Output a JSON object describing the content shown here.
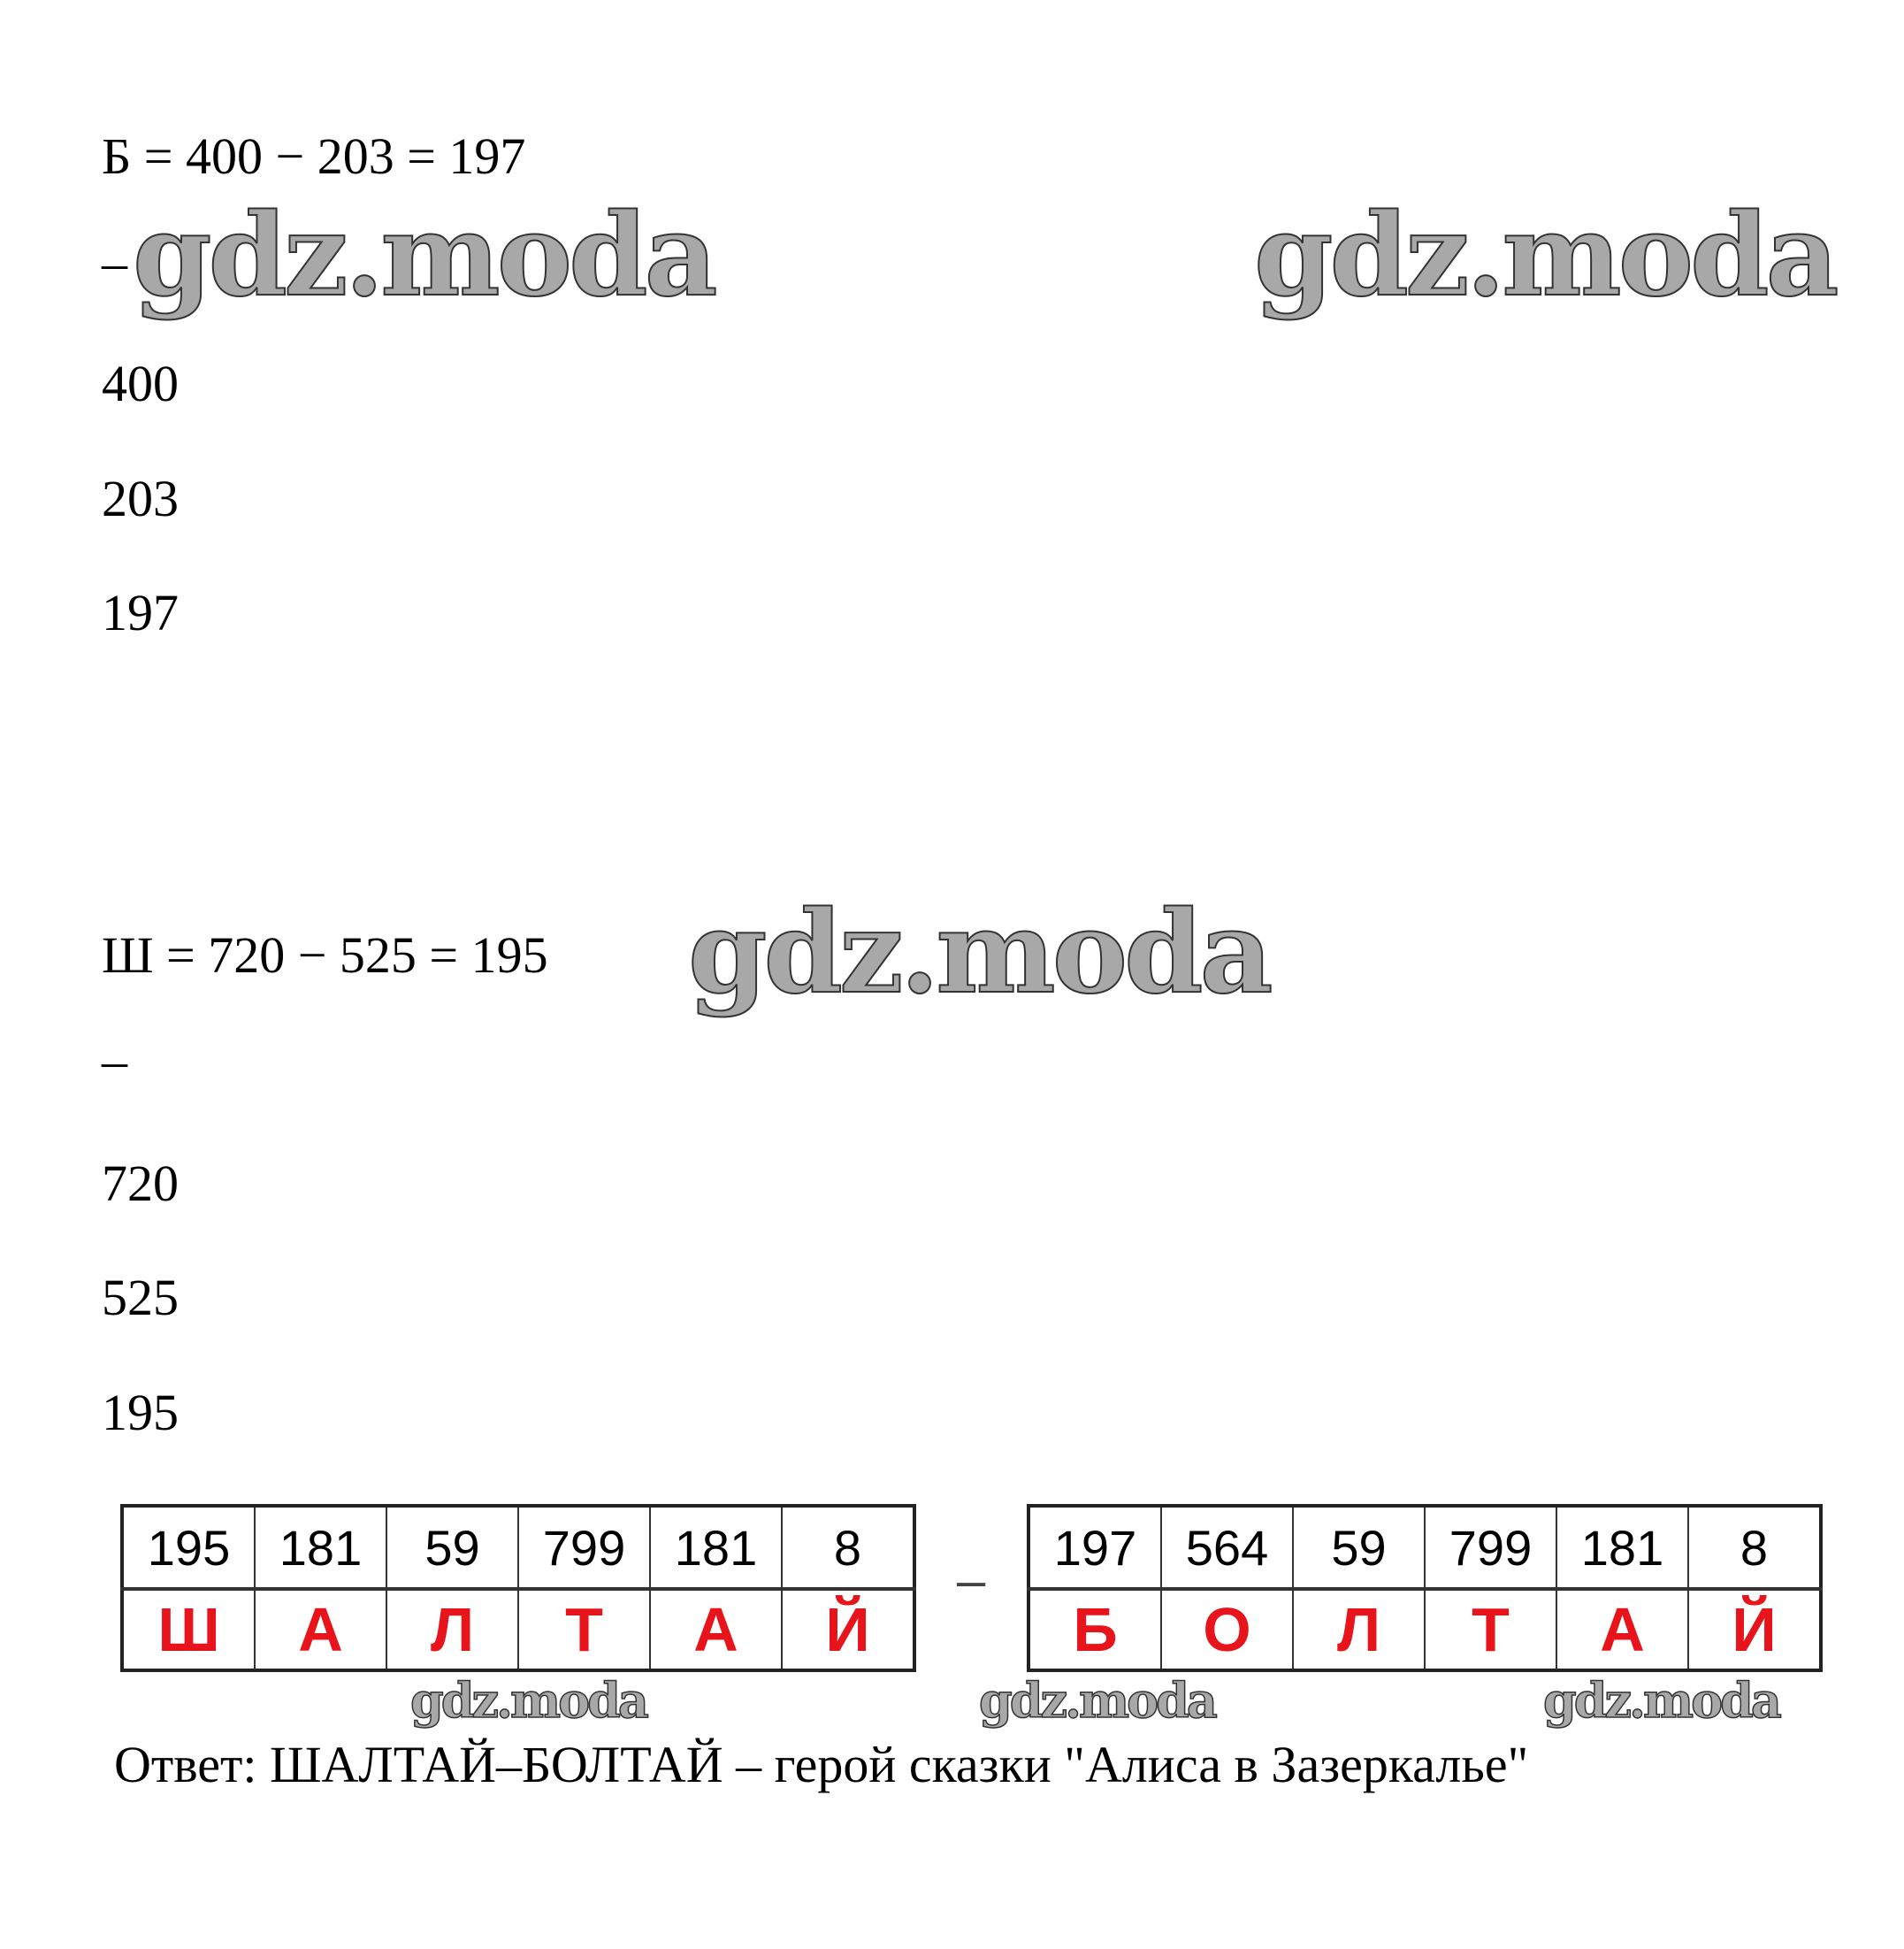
{
  "problem1": {
    "equation": "Б = 400 − 203 = 197",
    "minus_sign": "–",
    "column": [
      "400",
      "203",
      "197"
    ]
  },
  "problem2": {
    "equation": "Ш = 720 − 525 = 195",
    "minus_sign": "–",
    "column": [
      "720",
      "525",
      "195"
    ]
  },
  "watermark": "gdz.moda",
  "table_left": {
    "numbers": [
      "195",
      "181",
      "59",
      "799",
      "181",
      "8"
    ],
    "letters": [
      "Ш",
      "А",
      "Л",
      "Т",
      "А",
      "Й"
    ]
  },
  "table_separator": "–",
  "table_right": {
    "numbers": [
      "197",
      "564",
      "59",
      "799",
      "181",
      "8"
    ],
    "letters": [
      "Б",
      "О",
      "Л",
      "Т",
      "А",
      "Й"
    ]
  },
  "answer": "Ответ: ШАЛТАЙ–БОЛТАЙ – герой сказки \"Алиса в Зазеркалье\"",
  "colors": {
    "letters": "#e8141c",
    "watermark": "#a8a8a8"
  }
}
